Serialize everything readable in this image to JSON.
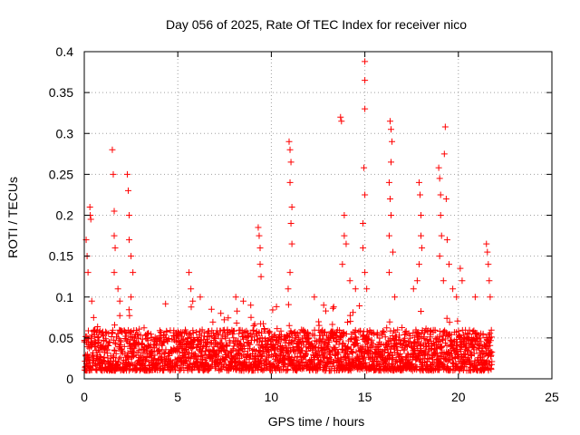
{
  "chart_data": {
    "type": "scatter",
    "title": "Day 056 of 2025, Rate Of TEC Index for receiver nico",
    "xlabel": "GPS time / hours",
    "ylabel": "ROTI / TECUs",
    "xlim": [
      0,
      25
    ],
    "ylim": [
      0,
      0.4
    ],
    "x_ticks": [
      0,
      5,
      10,
      15,
      20,
      25
    ],
    "x_tick_labels": [
      "0",
      "5",
      "10",
      "15",
      "20",
      "25"
    ],
    "y_ticks": [
      0,
      0.05,
      0.1,
      0.15,
      0.2,
      0.25,
      0.3,
      0.35,
      0.4
    ],
    "y_tick_labels": [
      "0",
      "0.05",
      "0.1",
      "0.15",
      "0.2",
      "0.25",
      "0.3",
      "0.35",
      "0.4"
    ],
    "grid": true,
    "marker": "+",
    "marker_color": "#ff0000",
    "data_x_range": [
      0,
      21.8
    ],
    "baseline_band": [
      0.01,
      0.06
    ],
    "series": [
      {
        "name": "ROTI",
        "spikes": [
          {
            "x": 0.1,
            "y": 0.17
          },
          {
            "x": 0.15,
            "y": 0.15
          },
          {
            "x": 0.2,
            "y": 0.13
          },
          {
            "x": 0.3,
            "y": 0.21
          },
          {
            "x": 0.32,
            "y": 0.2
          },
          {
            "x": 0.35,
            "y": 0.195
          },
          {
            "x": 0.4,
            "y": 0.095
          },
          {
            "x": 0.5,
            "y": 0.075
          },
          {
            "x": 1.5,
            "y": 0.28
          },
          {
            "x": 1.55,
            "y": 0.25
          },
          {
            "x": 1.6,
            "y": 0.205
          },
          {
            "x": 1.6,
            "y": 0.175
          },
          {
            "x": 1.65,
            "y": 0.16
          },
          {
            "x": 1.6,
            "y": 0.13
          },
          {
            "x": 1.8,
            "y": 0.11
          },
          {
            "x": 1.9,
            "y": 0.095
          },
          {
            "x": 2.3,
            "y": 0.25
          },
          {
            "x": 2.35,
            "y": 0.23
          },
          {
            "x": 2.4,
            "y": 0.2
          },
          {
            "x": 2.4,
            "y": 0.17
          },
          {
            "x": 2.5,
            "y": 0.15
          },
          {
            "x": 2.6,
            "y": 0.13
          },
          {
            "x": 2.5,
            "y": 0.1
          },
          {
            "x": 5.6,
            "y": 0.13
          },
          {
            "x": 5.7,
            "y": 0.11
          },
          {
            "x": 5.8,
            "y": 0.095
          },
          {
            "x": 6.2,
            "y": 0.1
          },
          {
            "x": 6.8,
            "y": 0.085
          },
          {
            "x": 7.3,
            "y": 0.08
          },
          {
            "x": 8.1,
            "y": 0.1
          },
          {
            "x": 8.5,
            "y": 0.095
          },
          {
            "x": 8.9,
            "y": 0.09
          },
          {
            "x": 9.3,
            "y": 0.185
          },
          {
            "x": 9.35,
            "y": 0.175
          },
          {
            "x": 9.4,
            "y": 0.16
          },
          {
            "x": 9.4,
            "y": 0.14
          },
          {
            "x": 9.45,
            "y": 0.125
          },
          {
            "x": 10.95,
            "y": 0.29
          },
          {
            "x": 11.0,
            "y": 0.28
          },
          {
            "x": 11.05,
            "y": 0.265
          },
          {
            "x": 11.0,
            "y": 0.24
          },
          {
            "x": 11.1,
            "y": 0.21
          },
          {
            "x": 11.05,
            "y": 0.19
          },
          {
            "x": 11.1,
            "y": 0.165
          },
          {
            "x": 11.0,
            "y": 0.13
          },
          {
            "x": 10.9,
            "y": 0.11
          },
          {
            "x": 12.3,
            "y": 0.1
          },
          {
            "x": 12.8,
            "y": 0.09
          },
          {
            "x": 13.7,
            "y": 0.32
          },
          {
            "x": 13.75,
            "y": 0.315
          },
          {
            "x": 13.9,
            "y": 0.2
          },
          {
            "x": 13.9,
            "y": 0.175
          },
          {
            "x": 14.0,
            "y": 0.165
          },
          {
            "x": 13.8,
            "y": 0.14
          },
          {
            "x": 14.2,
            "y": 0.12
          },
          {
            "x": 14.5,
            "y": 0.11
          },
          {
            "x": 15.0,
            "y": 0.388
          },
          {
            "x": 15.0,
            "y": 0.365
          },
          {
            "x": 15.0,
            "y": 0.33
          },
          {
            "x": 14.95,
            "y": 0.258
          },
          {
            "x": 15.0,
            "y": 0.225
          },
          {
            "x": 14.9,
            "y": 0.19
          },
          {
            "x": 14.9,
            "y": 0.16
          },
          {
            "x": 15.0,
            "y": 0.13
          },
          {
            "x": 15.1,
            "y": 0.11
          },
          {
            "x": 16.35,
            "y": 0.315
          },
          {
            "x": 16.4,
            "y": 0.305
          },
          {
            "x": 16.45,
            "y": 0.29
          },
          {
            "x": 16.4,
            "y": 0.265
          },
          {
            "x": 16.3,
            "y": 0.24
          },
          {
            "x": 16.35,
            "y": 0.22
          },
          {
            "x": 16.4,
            "y": 0.2
          },
          {
            "x": 16.3,
            "y": 0.175
          },
          {
            "x": 16.5,
            "y": 0.155
          },
          {
            "x": 16.3,
            "y": 0.13
          },
          {
            "x": 16.6,
            "y": 0.1
          },
          {
            "x": 17.6,
            "y": 0.11
          },
          {
            "x": 17.9,
            "y": 0.24
          },
          {
            "x": 17.95,
            "y": 0.225
          },
          {
            "x": 18.0,
            "y": 0.2
          },
          {
            "x": 18.0,
            "y": 0.175
          },
          {
            "x": 18.05,
            "y": 0.16
          },
          {
            "x": 17.9,
            "y": 0.14
          },
          {
            "x": 17.8,
            "y": 0.12
          },
          {
            "x": 18.95,
            "y": 0.258
          },
          {
            "x": 19.0,
            "y": 0.245
          },
          {
            "x": 19.05,
            "y": 0.225
          },
          {
            "x": 19.05,
            "y": 0.2
          },
          {
            "x": 19.1,
            "y": 0.175
          },
          {
            "x": 19.0,
            "y": 0.15
          },
          {
            "x": 19.3,
            "y": 0.308
          },
          {
            "x": 19.25,
            "y": 0.275
          },
          {
            "x": 19.35,
            "y": 0.22
          },
          {
            "x": 19.4,
            "y": 0.17
          },
          {
            "x": 19.5,
            "y": 0.14
          },
          {
            "x": 19.2,
            "y": 0.12
          },
          {
            "x": 19.7,
            "y": 0.11
          },
          {
            "x": 19.9,
            "y": 0.1
          },
          {
            "x": 20.1,
            "y": 0.135
          },
          {
            "x": 20.2,
            "y": 0.12
          },
          {
            "x": 20.9,
            "y": 0.1
          },
          {
            "x": 21.5,
            "y": 0.165
          },
          {
            "x": 21.55,
            "y": 0.155
          },
          {
            "x": 21.6,
            "y": 0.14
          },
          {
            "x": 21.65,
            "y": 0.12
          },
          {
            "x": 21.7,
            "y": 0.1
          }
        ]
      }
    ]
  }
}
